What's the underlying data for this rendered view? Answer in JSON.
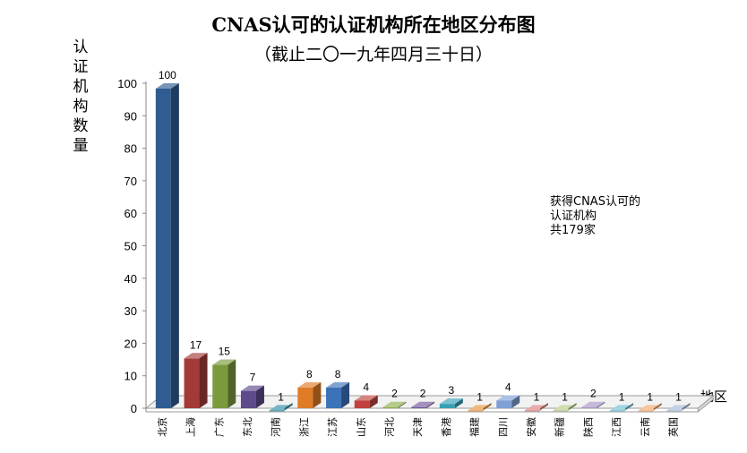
{
  "chart_data": {
    "type": "bar",
    "title": "CNAS认可的认证机构所在地区分布图",
    "subtitle": "（截止二〇一九年四月三十日）",
    "ylabel": "认证机构数量",
    "xlabel": "地区",
    "ylim": [
      0,
      100
    ],
    "yticks": [
      0,
      10,
      20,
      30,
      40,
      50,
      60,
      70,
      80,
      90,
      100
    ],
    "grid": false,
    "categories": [
      "北京",
      "上海",
      "广东",
      "东北",
      "河南",
      "浙江",
      "江苏",
      "山东",
      "河北",
      "天津",
      "香港",
      "福建",
      "四川",
      "安徽",
      "新疆",
      "陕西",
      "江西",
      "云南",
      "英国"
    ],
    "values": [
      100,
      17,
      15,
      7,
      1,
      8,
      8,
      4,
      2,
      2,
      3,
      1,
      4,
      1,
      1,
      2,
      1,
      1,
      1
    ],
    "colors": [
      "#2F5C91",
      "#A33A38",
      "#7B9A3D",
      "#5D4A8A",
      "#2E8CA0",
      "#E07B26",
      "#3C72B8",
      "#C0413D",
      "#8FAE4E",
      "#6F5598",
      "#36A0B5",
      "#E8923F",
      "#7EA0D6",
      "#D8807F",
      "#B5CB84",
      "#A594C6",
      "#6FBDD0",
      "#F2A66A",
      "#A8B9D6"
    ],
    "annotation": [
      "获得CNAS认可的",
      "认证机构",
      "共179家"
    ]
  }
}
